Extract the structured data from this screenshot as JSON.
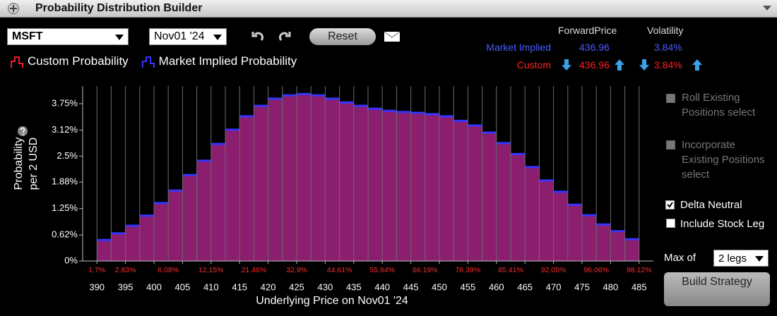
{
  "header": {
    "title": "Probability Distribution Builder"
  },
  "toolbar": {
    "symbol": "MSFT",
    "expiry": "Nov01 '24",
    "reset": "Reset"
  },
  "stats": {
    "columns": [
      "ForwardPrice",
      "Volatility"
    ],
    "rows": [
      {
        "label": "Market Implied",
        "forward": "436.96",
        "volatility": "3.84%"
      },
      {
        "label": "Custom",
        "forward": "436.96",
        "volatility": "3.84%"
      }
    ]
  },
  "options": {
    "roll": "Roll Existing Positions select",
    "incorporate": "Incorporate Existing Positions select",
    "delta": "Delta Neutral",
    "stock": "Include Stock Leg",
    "max_label": "Max of",
    "max_value": "2 legs",
    "build": "Build Strategy"
  },
  "chart_data": {
    "type": "histogram",
    "fill": "#8b1e6f",
    "grid": true,
    "ylabel": "Probability per 2 USD",
    "xlabel": "Underlying Price on Nov01 '24",
    "bins": [
      390,
      392.5,
      395,
      397.5,
      400,
      402.5,
      405,
      407.5,
      410,
      412.5,
      415,
      417.5,
      420,
      422.5,
      425,
      427.5,
      430,
      432.5,
      435,
      437.5,
      440,
      442.5,
      445,
      447.5,
      450,
      452.5,
      455,
      457.5,
      460,
      462.5,
      465,
      467.5,
      470,
      472.5,
      475,
      477.5,
      480,
      482.5,
      485
    ],
    "series": [
      {
        "name": "Custom Probability",
        "color": "#e8202a",
        "values": [
          0.5,
          0.66,
          0.84,
          1.08,
          1.38,
          1.68,
          2.05,
          2.39,
          2.79,
          3.13,
          3.45,
          3.7,
          3.87,
          3.95,
          3.98,
          3.95,
          3.87,
          3.78,
          3.7,
          3.63,
          3.58,
          3.55,
          3.53,
          3.5,
          3.45,
          3.34,
          3.23,
          3.06,
          2.81,
          2.55,
          2.24,
          1.92,
          1.65,
          1.34,
          1.09,
          0.87,
          0.71,
          0.52
        ]
      },
      {
        "name": "Market Implied Probability",
        "color": "#3535ff",
        "values": [
          0.5,
          0.66,
          0.84,
          1.08,
          1.38,
          1.68,
          2.05,
          2.39,
          2.79,
          3.13,
          3.45,
          3.7,
          3.87,
          3.95,
          3.98,
          3.95,
          3.87,
          3.78,
          3.7,
          3.63,
          3.58,
          3.55,
          3.53,
          3.5,
          3.45,
          3.34,
          3.23,
          3.06,
          2.81,
          2.55,
          2.24,
          1.92,
          1.65,
          1.34,
          1.09,
          0.87,
          0.71,
          0.52
        ]
      }
    ],
    "cumulative": {
      "color": "#ff2a2a",
      "x": [
        390,
        395,
        402.5,
        410,
        417.5,
        425,
        432.5,
        440,
        447.5,
        455,
        462.5,
        470,
        477.5,
        485
      ],
      "values": [
        1.7,
        2.83,
        6.08,
        12.15,
        21.46,
        32.9,
        44.61,
        55.64,
        66.19,
        76.39,
        85.41,
        92.05,
        96.06,
        98.12
      ],
      "value_labels": [
        "1.7%",
        "2.83%",
        "6.08%",
        "12.15%",
        "21.46%",
        "32.9%",
        "44.61%",
        "55.64%",
        "66.19%",
        "76.39%",
        "85.41%",
        "92.05%",
        "96.06%",
        "98.12%"
      ]
    },
    "xlim": [
      387.5,
      487.5
    ],
    "xticks": [
      390,
      395,
      400,
      405,
      410,
      415,
      420,
      425,
      430,
      435,
      440,
      445,
      450,
      455,
      460,
      465,
      470,
      475,
      480,
      485
    ],
    "ylim": [
      0,
      4.17
    ],
    "yticks": [
      {
        "value": 0,
        "label": "0%"
      },
      {
        "value": 0.62,
        "label": "0.62%"
      },
      {
        "value": 1.25,
        "label": "1.25%"
      },
      {
        "value": 1.88,
        "label": "1.88%"
      },
      {
        "value": 2.5,
        "label": "2.5%"
      },
      {
        "value": 3.12,
        "label": "3.12%"
      },
      {
        "value": 3.75,
        "label": "3.75%"
      }
    ]
  }
}
